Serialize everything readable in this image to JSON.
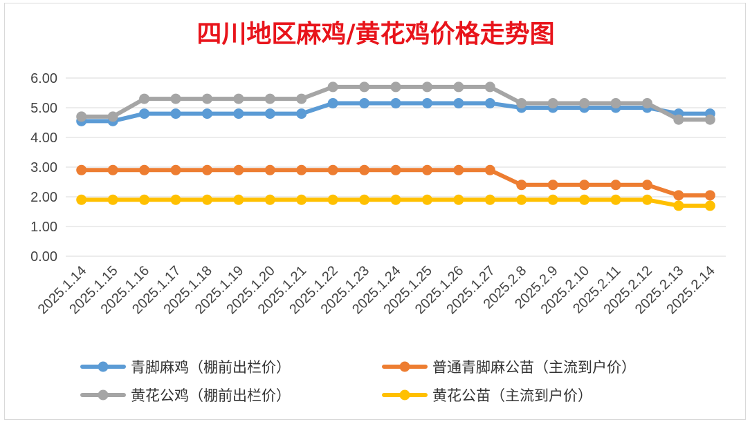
{
  "chart_data": {
    "type": "line",
    "title": "四川地区麻鸡/黄花鸡价格走势图",
    "xlabel": "",
    "ylabel": "",
    "ylim": [
      0,
      6
    ],
    "yticks": [
      "0.00",
      "1.00",
      "2.00",
      "3.00",
      "4.00",
      "5.00",
      "6.00"
    ],
    "grid": true,
    "legend_position": "bottom",
    "categories": [
      "2025.1.14",
      "2025.1.15",
      "2025.1.16",
      "2025.1.17",
      "2025.1.18",
      "2025.1.19",
      "2025.1.20",
      "2025.1.21",
      "2025.1.22",
      "2025.1.23",
      "2025.1.24",
      "2025.1.25",
      "2025.1.26",
      "2025.1.27",
      "2025.2.8",
      "2025.2.9",
      "2025.2.10",
      "2025.2.11",
      "2025.2.12",
      "2025.2.13",
      "2025.2.14"
    ],
    "series": [
      {
        "name": "青脚麻鸡（棚前出栏价）",
        "color": "#5b9bd5",
        "values": [
          4.55,
          4.55,
          4.8,
          4.8,
          4.8,
          4.8,
          4.8,
          4.8,
          5.15,
          5.15,
          5.15,
          5.15,
          5.15,
          5.15,
          5.0,
          5.0,
          5.0,
          5.0,
          5.0,
          4.8,
          4.8
        ]
      },
      {
        "name": "普通青脚麻公苗（主流到户价）",
        "color": "#ed7d31",
        "values": [
          2.9,
          2.9,
          2.9,
          2.9,
          2.9,
          2.9,
          2.9,
          2.9,
          2.9,
          2.9,
          2.9,
          2.9,
          2.9,
          2.9,
          2.4,
          2.4,
          2.4,
          2.4,
          2.4,
          2.05,
          2.05
        ]
      },
      {
        "name": "黄花公鸡（棚前出栏价）",
        "color": "#a5a5a5",
        "values": [
          4.7,
          4.7,
          5.3,
          5.3,
          5.3,
          5.3,
          5.3,
          5.3,
          5.7,
          5.7,
          5.7,
          5.7,
          5.7,
          5.7,
          5.15,
          5.15,
          5.15,
          5.15,
          5.15,
          4.6,
          4.6
        ]
      },
      {
        "name": "黄花公苗（主流到户价）",
        "color": "#ffc000",
        "values": [
          1.9,
          1.9,
          1.9,
          1.9,
          1.9,
          1.9,
          1.9,
          1.9,
          1.9,
          1.9,
          1.9,
          1.9,
          1.9,
          1.9,
          1.9,
          1.9,
          1.9,
          1.9,
          1.9,
          1.7,
          1.7
        ]
      }
    ]
  }
}
